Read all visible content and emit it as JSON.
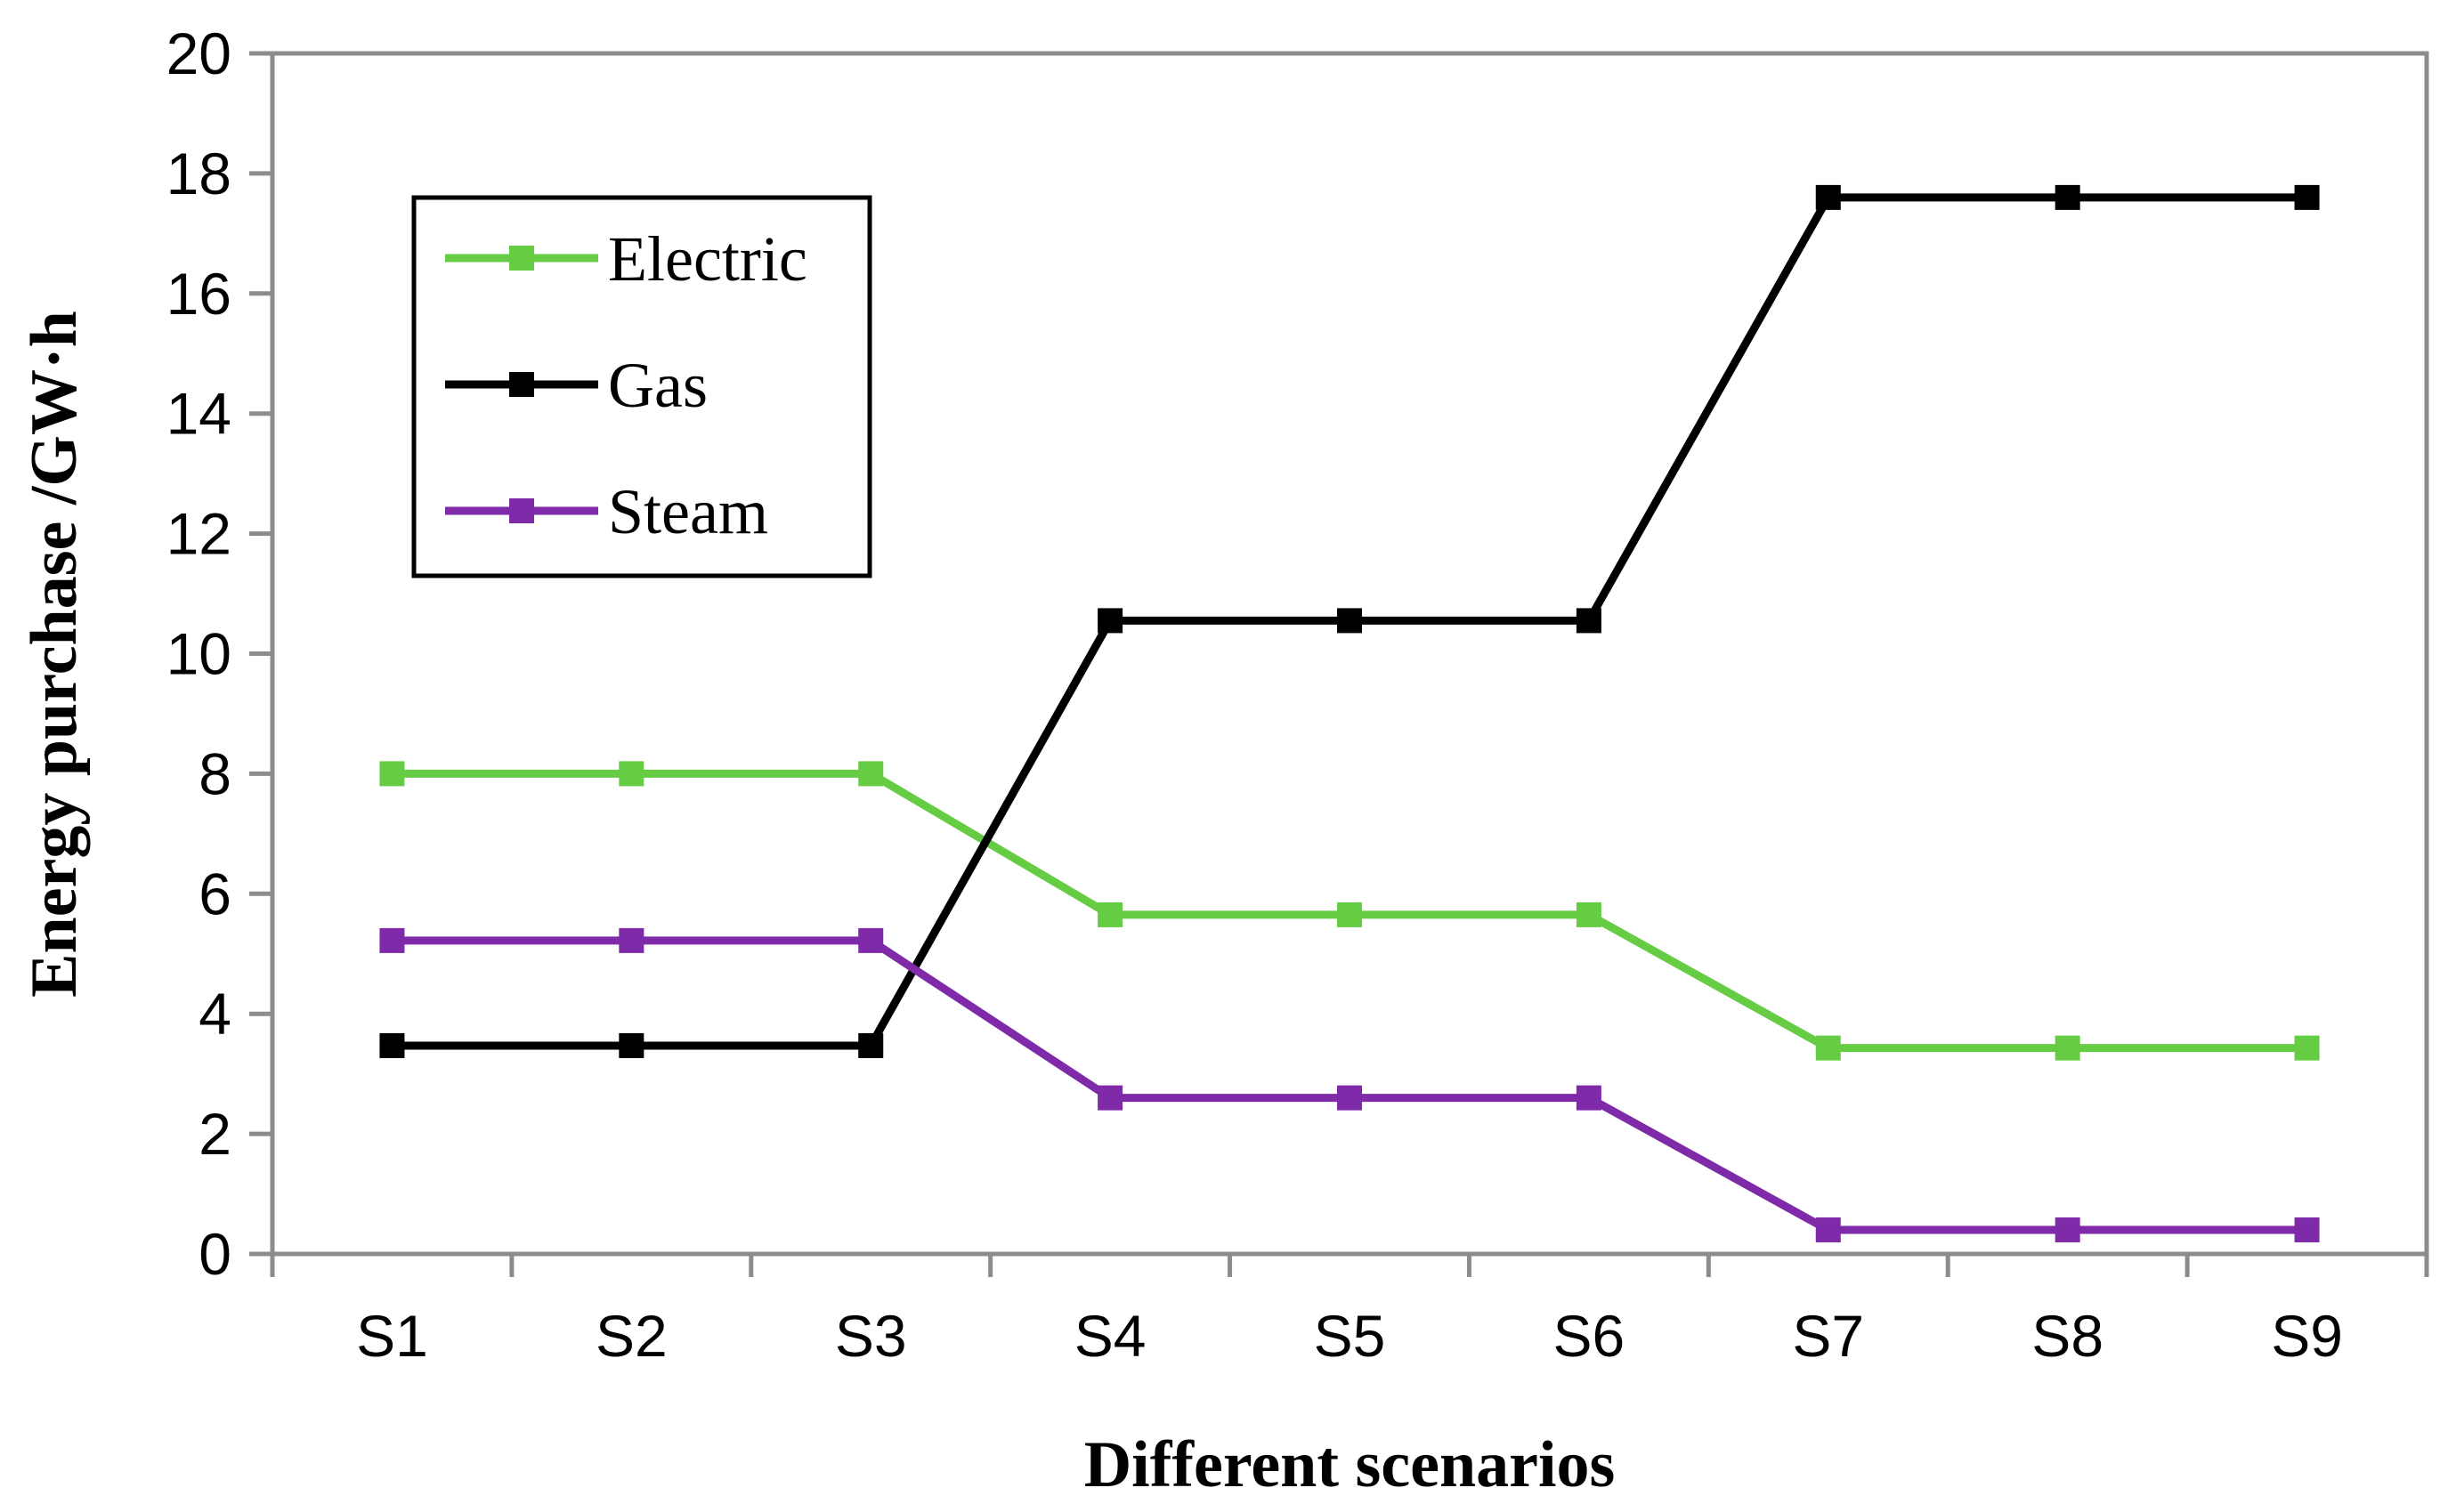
{
  "chart_data": {
    "type": "line",
    "title": "",
    "xlabel": "Different scenarios",
    "ylabel": "Energy purchase /GW·h",
    "categories": [
      "S1",
      "S2",
      "S3",
      "S4",
      "S5",
      "S6",
      "S7",
      "S8",
      "S9"
    ],
    "ylim": [
      0,
      20
    ],
    "yticks": [
      0,
      2,
      4,
      6,
      8,
      10,
      12,
      14,
      16,
      18,
      20
    ],
    "grid": false,
    "legend_position": "top-left",
    "series": [
      {
        "name": "Electric",
        "color": "#66cc44",
        "values": [
          8.0,
          8.0,
          8.0,
          5.65,
          5.65,
          5.65,
          3.43,
          3.43,
          3.43
        ]
      },
      {
        "name": "Gas",
        "color": "#000000",
        "values": [
          3.47,
          3.47,
          3.47,
          10.55,
          10.55,
          10.55,
          17.6,
          17.6,
          17.6
        ]
      },
      {
        "name": "Steam",
        "color": "#7f2aa8",
        "values": [
          5.22,
          5.22,
          5.22,
          2.6,
          2.6,
          2.6,
          0.4,
          0.4,
          0.4
        ]
      }
    ]
  }
}
